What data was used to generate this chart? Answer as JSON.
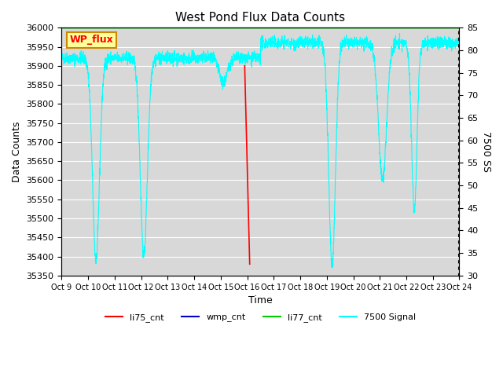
{
  "title": "West Pond Flux Data Counts",
  "xlabel": "Time",
  "ylabel": "Data Counts",
  "ylabel_right": "7500 SS",
  "ylim_left": [
    35350,
    36000
  ],
  "ylim_right": [
    30,
    85
  ],
  "bg_color": "#d8d8d8",
  "fig_bg": "#ffffff",
  "legend_labels": [
    "li75_cnt",
    "wmp_cnt",
    "li77_cnt",
    "7500 Signal"
  ],
  "legend_colors": [
    "#ff0000",
    "#0000cc",
    "#00cc00",
    "#00cccc"
  ],
  "annotation_box": {
    "text": "WP_flux",
    "facecolor": "#ffff99",
    "edgecolor": "#cc8800"
  },
  "xtick_labels": [
    "Oct 9",
    "Oct 10",
    "Oct 11",
    "Oct 12",
    "Oct 13",
    "Oct 14",
    "Oct 15",
    "Oct 16",
    "Oct 17",
    "Oct 18",
    "Oct 19",
    "Oct 20",
    "Oct 21",
    "Oct 22",
    "Oct 23",
    "Oct 24"
  ]
}
